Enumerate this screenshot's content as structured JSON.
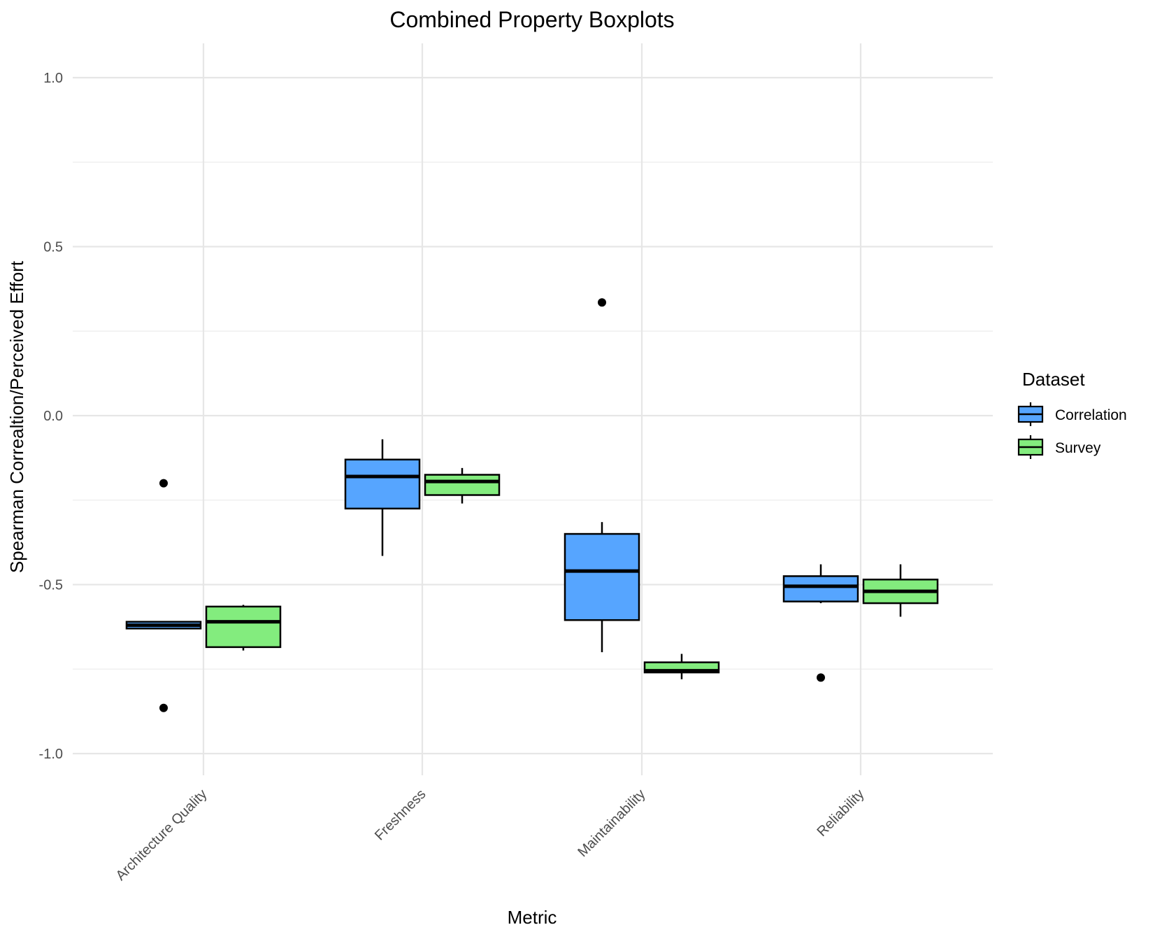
{
  "chart_data": {
    "type": "boxplot",
    "title": "Combined Property Boxplots",
    "xlabel": "Metric",
    "ylabel": "Spearman Correaltion/Perceived Effort",
    "ylim": [
      -1.05,
      1.1
    ],
    "yticks": [
      1.0,
      0.5,
      0.0,
      -0.5,
      -1.0
    ],
    "ytick_labels": [
      "1.0",
      "0.5",
      "0.0",
      "-0.5",
      "-1.0"
    ],
    "grid": true,
    "categories": [
      "Architecture Quality",
      "Freshness",
      "Maintainability",
      "Reliability"
    ],
    "legend": {
      "title": "Dataset",
      "placement": "right"
    },
    "series": [
      {
        "name": "Correlation",
        "color": "#56A5FF",
        "boxes": [
          {
            "category": "Architecture Quality",
            "whisker_low": -0.63,
            "q1": -0.63,
            "median": -0.62,
            "q3": -0.61,
            "whisker_high": -0.61,
            "outliers": [
              -0.2,
              -0.865
            ]
          },
          {
            "category": "Freshness",
            "whisker_low": -0.415,
            "q1": -0.275,
            "median": -0.18,
            "q3": -0.13,
            "whisker_high": -0.07,
            "outliers": []
          },
          {
            "category": "Maintainability",
            "whisker_low": -0.7,
            "q1": -0.605,
            "median": -0.46,
            "q3": -0.35,
            "whisker_high": -0.315,
            "outliers": [
              0.335
            ]
          },
          {
            "category": "Reliability",
            "whisker_low": -0.555,
            "q1": -0.55,
            "median": -0.505,
            "q3": -0.475,
            "whisker_high": -0.44,
            "outliers": [
              -0.775
            ]
          }
        ]
      },
      {
        "name": "Survey",
        "color": "#83EC7E",
        "boxes": [
          {
            "category": "Architecture Quality",
            "whisker_low": -0.695,
            "q1": -0.685,
            "median": -0.61,
            "q3": -0.565,
            "whisker_high": -0.56,
            "outliers": []
          },
          {
            "category": "Freshness",
            "whisker_low": -0.26,
            "q1": -0.235,
            "median": -0.195,
            "q3": -0.175,
            "whisker_high": -0.155,
            "outliers": []
          },
          {
            "category": "Maintainability",
            "whisker_low": -0.78,
            "q1": -0.76,
            "median": -0.755,
            "q3": -0.73,
            "whisker_high": -0.705,
            "outliers": []
          },
          {
            "category": "Reliability",
            "whisker_low": -0.595,
            "q1": -0.555,
            "median": -0.52,
            "q3": -0.485,
            "whisker_high": -0.44,
            "outliers": []
          }
        ]
      }
    ]
  }
}
